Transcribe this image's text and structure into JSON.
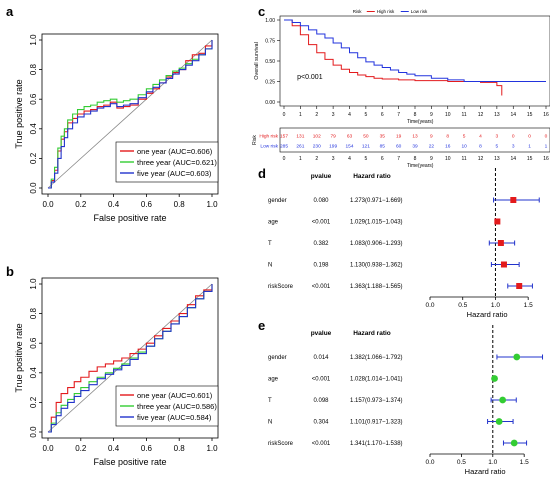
{
  "panels": {
    "a": {
      "letter": "a"
    },
    "b": {
      "letter": "b"
    },
    "c": {
      "letter": "c"
    },
    "d": {
      "letter": "d"
    },
    "e": {
      "letter": "e"
    }
  },
  "colors": {
    "one_year": "#e31a1c",
    "three_year": "#33cc33",
    "five_year": "#2233cc",
    "high_risk": "#e31a1c",
    "low_risk": "#2233dd",
    "box_d": "#e31a1c",
    "box_e": "#33cc33"
  },
  "chart_data": [
    {
      "id": "a",
      "type": "line",
      "xlabel": "False positive rate",
      "ylabel": "True positive rate",
      "xlim": [
        0,
        1
      ],
      "ylim": [
        0,
        1
      ],
      "xticks": [
        "0.0",
        "0.2",
        "0.4",
        "0.6",
        "0.8",
        "1.0"
      ],
      "yticks": [
        "0.0",
        "0.2",
        "0.4",
        "0.6",
        "0.8",
        "1.0"
      ],
      "legend_position": "bottom-right",
      "series": [
        {
          "name": "one year (AUC=0.606)",
          "key": "one_year",
          "x": [
            0,
            0.02,
            0.04,
            0.06,
            0.08,
            0.1,
            0.12,
            0.15,
            0.18,
            0.22,
            0.26,
            0.3,
            0.34,
            0.38,
            0.42,
            0.46,
            0.5,
            0.55,
            0.6,
            0.64,
            0.68,
            0.72,
            0.76,
            0.8,
            0.84,
            0.88,
            0.92,
            0.96,
            1
          ],
          "y": [
            0,
            0.05,
            0.12,
            0.25,
            0.33,
            0.38,
            0.44,
            0.47,
            0.5,
            0.52,
            0.53,
            0.55,
            0.56,
            0.58,
            0.54,
            0.55,
            0.56,
            0.6,
            0.64,
            0.67,
            0.71,
            0.75,
            0.78,
            0.8,
            0.86,
            0.9,
            0.91,
            0.96,
            1
          ]
        },
        {
          "name": "three year (AUC=0.621)",
          "key": "three_year",
          "x": [
            0,
            0.02,
            0.04,
            0.06,
            0.08,
            0.1,
            0.12,
            0.15,
            0.18,
            0.22,
            0.26,
            0.3,
            0.34,
            0.38,
            0.42,
            0.46,
            0.5,
            0.55,
            0.6,
            0.64,
            0.68,
            0.72,
            0.76,
            0.8,
            0.84,
            0.88,
            0.92,
            0.96,
            1
          ],
          "y": [
            0,
            0.06,
            0.14,
            0.27,
            0.35,
            0.4,
            0.46,
            0.5,
            0.53,
            0.55,
            0.56,
            0.58,
            0.59,
            0.6,
            0.58,
            0.59,
            0.6,
            0.63,
            0.67,
            0.7,
            0.73,
            0.76,
            0.79,
            0.81,
            0.84,
            0.87,
            0.9,
            0.94,
            1
          ]
        },
        {
          "name": "five year (AUC=0.603)",
          "key": "five_year",
          "x": [
            0,
            0.02,
            0.04,
            0.06,
            0.08,
            0.1,
            0.12,
            0.15,
            0.18,
            0.22,
            0.26,
            0.3,
            0.34,
            0.38,
            0.42,
            0.46,
            0.5,
            0.55,
            0.6,
            0.64,
            0.68,
            0.72,
            0.76,
            0.8,
            0.84,
            0.88,
            0.92,
            0.96,
            1
          ],
          "y": [
            0,
            0.04,
            0.1,
            0.2,
            0.28,
            0.34,
            0.4,
            0.44,
            0.48,
            0.5,
            0.52,
            0.54,
            0.55,
            0.57,
            0.55,
            0.56,
            0.57,
            0.61,
            0.65,
            0.68,
            0.71,
            0.74,
            0.77,
            0.8,
            0.83,
            0.86,
            0.9,
            0.94,
            1
          ]
        }
      ]
    },
    {
      "id": "b",
      "type": "line",
      "xlabel": "False positive rate",
      "ylabel": "True positive rate",
      "xlim": [
        0,
        1
      ],
      "ylim": [
        0,
        1
      ],
      "xticks": [
        "0.0",
        "0.2",
        "0.4",
        "0.6",
        "0.8",
        "1.0"
      ],
      "yticks": [
        "0.0",
        "0.2",
        "0.4",
        "0.6",
        "0.8",
        "1.0"
      ],
      "legend_position": "bottom-right",
      "series": [
        {
          "name": "one year (AUC=0.601)",
          "key": "one_year",
          "x": [
            0,
            0.02,
            0.05,
            0.08,
            0.12,
            0.16,
            0.2,
            0.25,
            0.3,
            0.35,
            0.4,
            0.45,
            0.5,
            0.55,
            0.6,
            0.65,
            0.7,
            0.75,
            0.8,
            0.85,
            0.9,
            0.95,
            1
          ],
          "y": [
            0,
            0.1,
            0.2,
            0.26,
            0.3,
            0.34,
            0.37,
            0.41,
            0.44,
            0.46,
            0.48,
            0.5,
            0.53,
            0.56,
            0.6,
            0.65,
            0.7,
            0.75,
            0.8,
            0.86,
            0.92,
            0.96,
            1
          ]
        },
        {
          "name": "three year (AUC=0.586)",
          "key": "three_year",
          "x": [
            0,
            0.02,
            0.05,
            0.08,
            0.12,
            0.16,
            0.2,
            0.25,
            0.3,
            0.35,
            0.4,
            0.45,
            0.5,
            0.55,
            0.6,
            0.65,
            0.7,
            0.75,
            0.8,
            0.85,
            0.9,
            0.95,
            1
          ],
          "y": [
            0,
            0.06,
            0.13,
            0.18,
            0.22,
            0.26,
            0.3,
            0.34,
            0.37,
            0.4,
            0.43,
            0.46,
            0.5,
            0.54,
            0.58,
            0.63,
            0.68,
            0.73,
            0.78,
            0.84,
            0.9,
            0.95,
            1
          ]
        },
        {
          "name": "five year (AUC=0.584)",
          "key": "five_year",
          "x": [
            0,
            0.02,
            0.05,
            0.08,
            0.12,
            0.16,
            0.2,
            0.25,
            0.3,
            0.35,
            0.4,
            0.45,
            0.5,
            0.55,
            0.6,
            0.65,
            0.7,
            0.75,
            0.8,
            0.85,
            0.9,
            0.95,
            1
          ],
          "y": [
            0,
            0.05,
            0.11,
            0.16,
            0.2,
            0.24,
            0.28,
            0.32,
            0.36,
            0.39,
            0.42,
            0.45,
            0.49,
            0.53,
            0.58,
            0.63,
            0.68,
            0.73,
            0.78,
            0.84,
            0.9,
            0.95,
            1
          ]
        }
      ]
    },
    {
      "id": "c",
      "type": "line",
      "ylabel": "Overall survival",
      "xlabel": "Time(years)",
      "xlim": [
        0,
        16
      ],
      "ylim": [
        0,
        1
      ],
      "xticks": [
        "0",
        "1",
        "2",
        "3",
        "4",
        "5",
        "6",
        "7",
        "8",
        "9",
        "10",
        "11",
        "12",
        "13",
        "14",
        "15",
        "16"
      ],
      "yticks": [
        "0.00",
        "0.25",
        "0.50",
        "0.75",
        "1.00"
      ],
      "legend_title": "Risk",
      "legend_position": "top-right",
      "pvalue": "p<0.001",
      "series": [
        {
          "name": "High risk",
          "key": "high_risk",
          "x": [
            0,
            0.5,
            1,
            1.5,
            2,
            2.5,
            3,
            3.5,
            4,
            4.5,
            5,
            5.5,
            6,
            7,
            8,
            9,
            10,
            11,
            12,
            13,
            13.3
          ],
          "y": [
            1,
            0.93,
            0.82,
            0.7,
            0.6,
            0.52,
            0.45,
            0.4,
            0.36,
            0.33,
            0.31,
            0.29,
            0.28,
            0.27,
            0.26,
            0.26,
            0.25,
            0.25,
            0.24,
            0.2,
            0.08
          ]
        },
        {
          "name": "Low risk",
          "key": "low_risk",
          "x": [
            0,
            0.5,
            1,
            1.5,
            2,
            2.5,
            3,
            3.5,
            4,
            4.5,
            5,
            5.5,
            6,
            6.5,
            7,
            7.5,
            8,
            9,
            10,
            11,
            12,
            13,
            14,
            15,
            16
          ],
          "y": [
            1,
            0.97,
            0.93,
            0.88,
            0.83,
            0.78,
            0.72,
            0.66,
            0.6,
            0.54,
            0.49,
            0.45,
            0.42,
            0.39,
            0.36,
            0.34,
            0.32,
            0.29,
            0.27,
            0.25,
            0.25,
            0.25,
            0.25,
            0.25,
            0.25
          ]
        }
      ],
      "risk_table": {
        "title": "Risk",
        "times": [
          "0",
          "1",
          "2",
          "3",
          "4",
          "5",
          "6",
          "7",
          "8",
          "9",
          "10",
          "11",
          "12",
          "13",
          "14",
          "15",
          "16"
        ],
        "rows": [
          {
            "label": "High risk",
            "key": "high_risk",
            "values": [
              "157",
              "131",
              "102",
              "79",
              "63",
              "50",
              "35",
              "19",
              "13",
              "9",
              "8",
              "5",
              "4",
              "3",
              "0",
              "0",
              "0"
            ]
          },
          {
            "label": "Low risk",
            "key": "low_risk",
            "values": [
              "285",
              "261",
              "230",
              "199",
              "154",
              "121",
              "85",
              "60",
              "39",
              "22",
              "16",
              "10",
              "8",
              "5",
              "3",
              "1",
              "1"
            ]
          }
        ],
        "xlabel": "Time(years)"
      }
    },
    {
      "id": "d",
      "type": "forest",
      "headers": {
        "pvalue": "pvalue",
        "hr": "Hazard ratio"
      },
      "xlabel": "Hazard ratio",
      "xlim": [
        0,
        1.65
      ],
      "ref_line": 1.0,
      "xticks": [
        "0.0",
        "0.5",
        "1.0",
        "1.5"
      ],
      "rows": [
        {
          "name": "gender",
          "pvalue": "0.080",
          "hr_text": "1.273(0.971−1.669)",
          "hr": 1.273,
          "lo": 0.971,
          "hi": 1.669
        },
        {
          "name": "age",
          "pvalue": "<0.001",
          "hr_text": "1.029(1.015−1.043)",
          "hr": 1.029,
          "lo": 1.015,
          "hi": 1.043
        },
        {
          "name": "T",
          "pvalue": "0.382",
          "hr_text": "1.083(0.906−1.293)",
          "hr": 1.083,
          "lo": 0.906,
          "hi": 1.293
        },
        {
          "name": "N",
          "pvalue": "0.198",
          "hr_text": "1.130(0.938−1.362)",
          "hr": 1.13,
          "lo": 0.938,
          "hi": 1.362
        },
        {
          "name": "riskScore",
          "pvalue": "<0.001",
          "hr_text": "1.363(1.188−1.565)",
          "hr": 1.363,
          "lo": 1.188,
          "hi": 1.565
        }
      ]
    },
    {
      "id": "e",
      "type": "forest",
      "headers": {
        "pvalue": "pvalue",
        "hr": "Hazard ratio"
      },
      "xlabel": "Hazard ratio",
      "xlim": [
        0,
        1.72
      ],
      "ref_line": 1.0,
      "xticks": [
        "0.0",
        "0.5",
        "1.0",
        "1.5"
      ],
      "rows": [
        {
          "name": "gender",
          "pvalue": "0.014",
          "hr_text": "1.382(1.066−1.792)",
          "hr": 1.382,
          "lo": 1.066,
          "hi": 1.792
        },
        {
          "name": "age",
          "pvalue": "<0.001",
          "hr_text": "1.028(1.014−1.041)",
          "hr": 1.028,
          "lo": 1.014,
          "hi": 1.041
        },
        {
          "name": "T",
          "pvalue": "0.098",
          "hr_text": "1.157(0.973−1.374)",
          "hr": 1.157,
          "lo": 0.973,
          "hi": 1.374
        },
        {
          "name": "N",
          "pvalue": "0.304",
          "hr_text": "1.101(0.917−1.323)",
          "hr": 1.101,
          "lo": 0.917,
          "hi": 1.323
        },
        {
          "name": "riskScore",
          "pvalue": "<0.001",
          "hr_text": "1.341(1.170−1.538)",
          "hr": 1.341,
          "lo": 1.17,
          "hi": 1.538
        }
      ]
    }
  ]
}
